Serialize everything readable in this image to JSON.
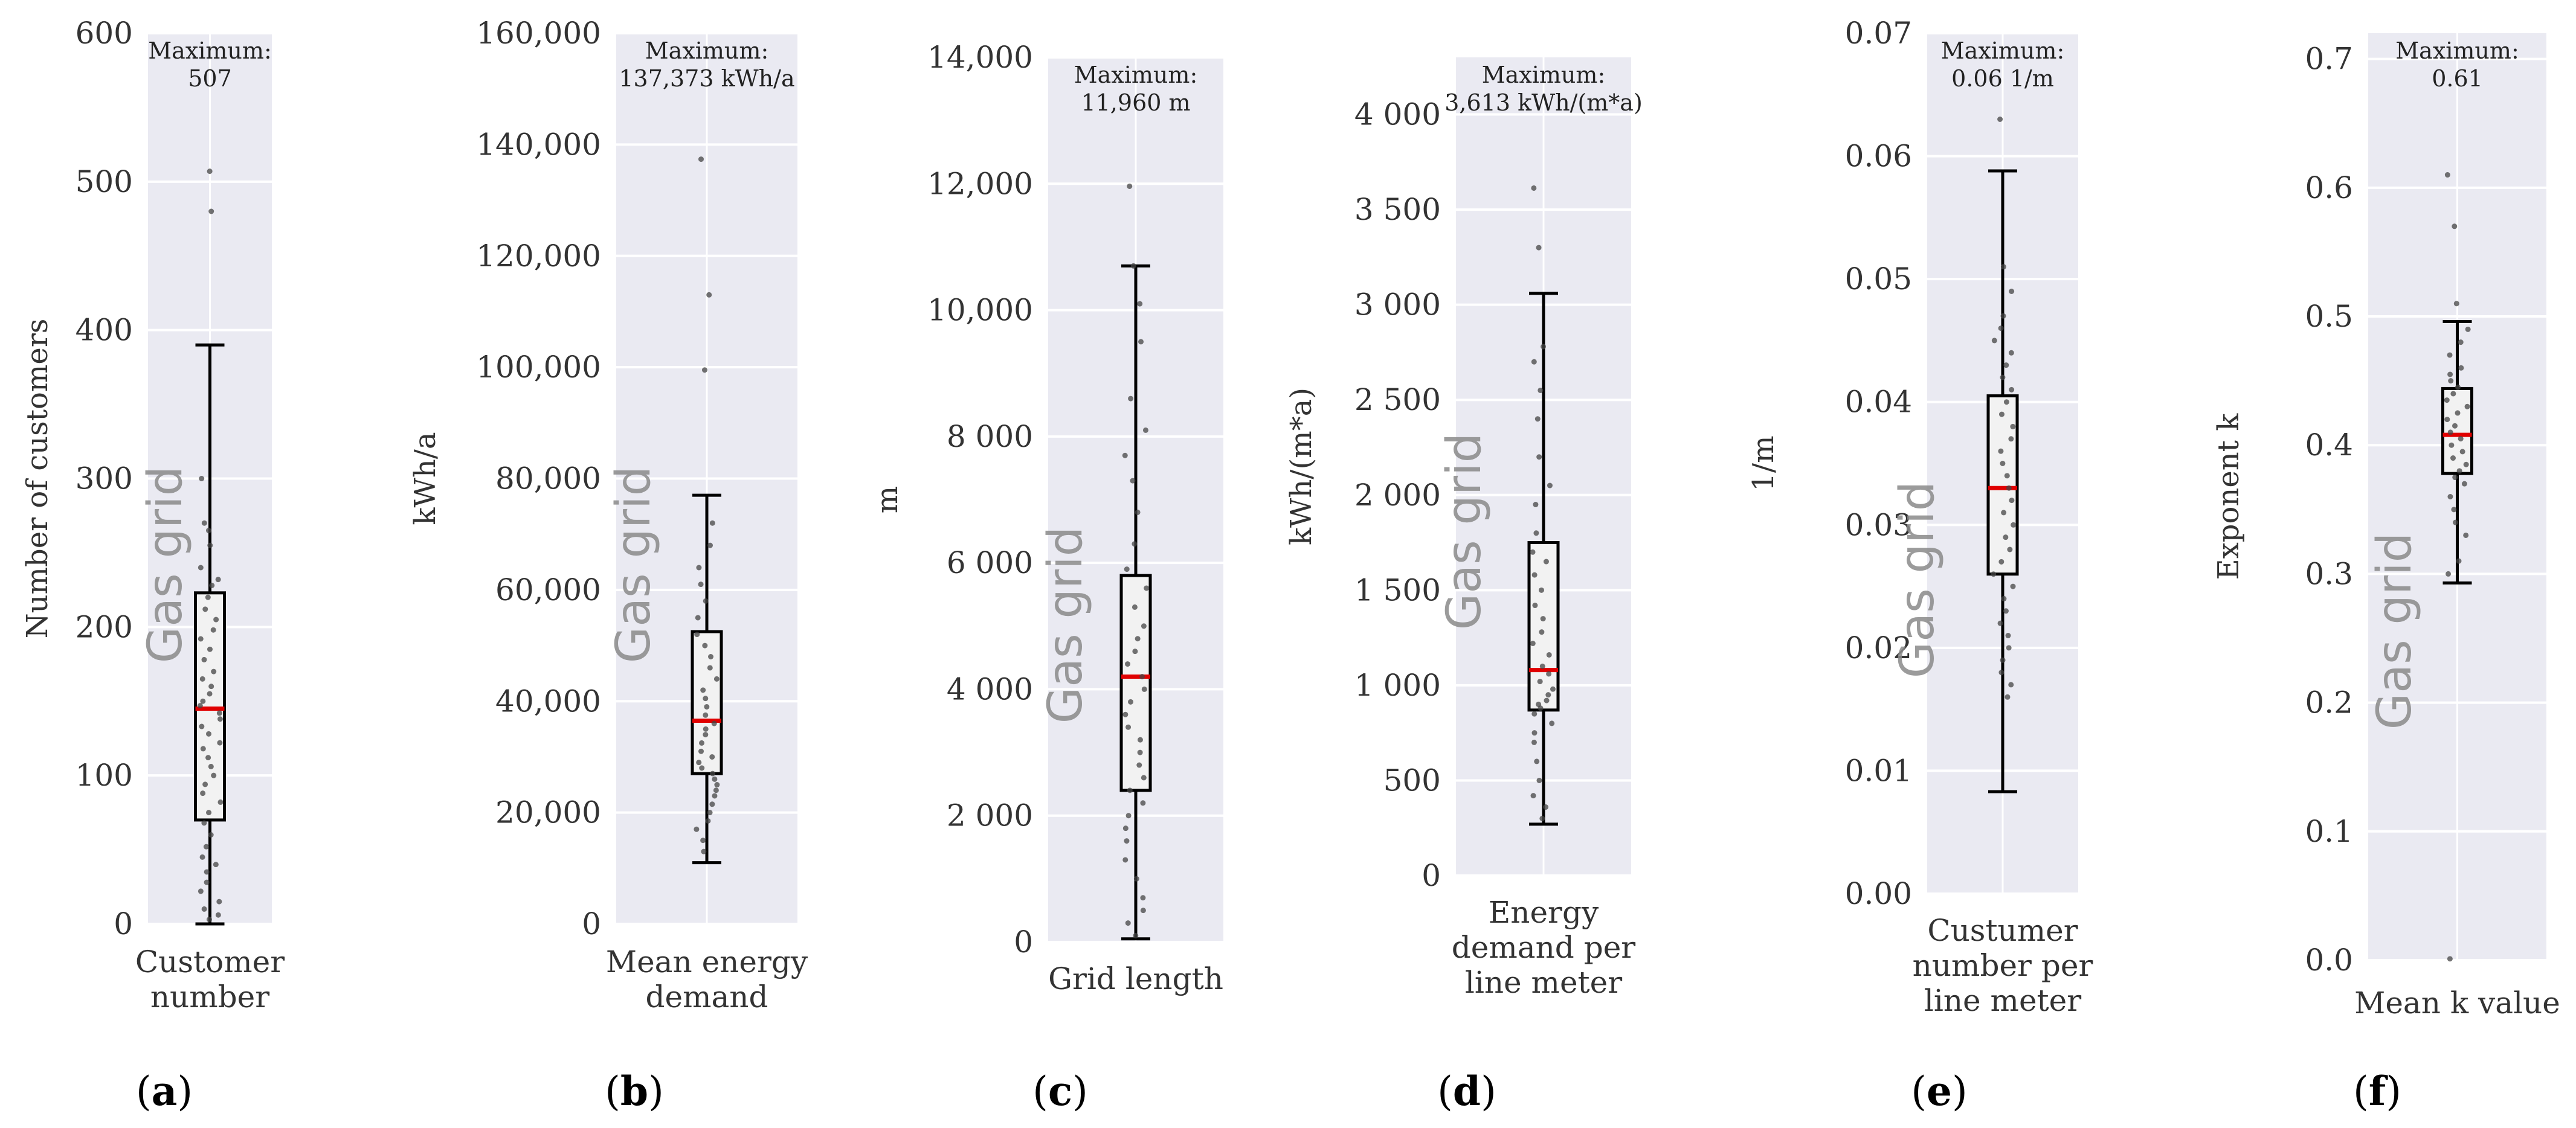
{
  "watermark": "Gas grid",
  "chart_data": [
    {
      "type": "box",
      "panel_label": "(a)",
      "panel_letter": "a",
      "category": [
        "Customer",
        "number"
      ],
      "ylabel": "Number of customers",
      "ylim": [
        0,
        600
      ],
      "ticks": [
        0,
        100,
        200,
        300,
        400,
        500,
        600
      ],
      "tick_labels": [
        "0",
        "100",
        "200",
        "300",
        "400",
        "500",
        "600"
      ],
      "max_label": [
        "Maximum:",
        "507"
      ],
      "whisker_low": 0,
      "q1": 70,
      "median": 145,
      "q3": 223,
      "whisker_high": 390,
      "points": [
        507,
        480,
        300,
        270,
        265,
        255,
        240,
        232,
        228,
        220,
        212,
        205,
        198,
        192,
        185,
        178,
        170,
        165,
        160,
        155,
        150,
        147,
        142,
        138,
        133,
        128,
        122,
        118,
        112,
        106,
        100,
        94,
        88,
        82,
        75,
        68,
        60,
        52,
        45,
        40,
        35,
        28,
        22,
        15,
        10,
        6,
        3
      ]
    },
    {
      "type": "box",
      "panel_label": "(b)",
      "panel_letter": "b",
      "category": [
        "Mean energy",
        "demand"
      ],
      "ylabel": "kWh/a",
      "ylim": [
        0,
        160000
      ],
      "ticks": [
        0,
        20000,
        40000,
        60000,
        80000,
        100000,
        120000,
        140000,
        160000
      ],
      "tick_labels": [
        "0",
        "20,000",
        "40,000",
        "60,000",
        "80,000",
        "100,000",
        "120,000",
        "140,000",
        "160,000"
      ],
      "max_label": [
        "Maximum:",
        "137,373 kWh/a"
      ],
      "whisker_low": 11000,
      "q1": 27000,
      "median": 36500,
      "q3": 52500,
      "whisker_high": 77000,
      "points": [
        137373,
        113000,
        99500,
        72000,
        68000,
        64000,
        61000,
        58000,
        55000,
        52000,
        50000,
        48000,
        46000,
        44000,
        42000,
        40500,
        39000,
        37500,
        36000,
        35000,
        34000,
        32500,
        31000,
        30000,
        29000,
        28000,
        27000,
        26000,
        25000,
        24000,
        23000,
        21500,
        20000,
        18500,
        17000,
        15000,
        13000
      ]
    },
    {
      "type": "box",
      "panel_label": "(c)",
      "panel_letter": "c",
      "category": [
        "Grid length"
      ],
      "ylabel": "m",
      "ylim": [
        0,
        14000
      ],
      "ticks": [
        0,
        2000,
        4000,
        6000,
        8000,
        10000,
        12000,
        14000
      ],
      "tick_labels": [
        "0",
        "2 000",
        "4 000",
        "6 000",
        "8 000",
        "10,000",
        "12,000",
        "14,000"
      ],
      "max_label": [
        "Maximum:",
        "11,960 m"
      ],
      "whisker_low": 50,
      "q1": 2400,
      "median": 4200,
      "q3": 5800,
      "whisker_high": 10700,
      "points": [
        11960,
        10700,
        10100,
        9500,
        8600,
        8100,
        7700,
        7300,
        6800,
        6300,
        5900,
        5600,
        5300,
        5000,
        4800,
        4600,
        4400,
        4200,
        4000,
        3800,
        3600,
        3400,
        3200,
        3000,
        2800,
        2600,
        2400,
        2200,
        2000,
        1800,
        1600,
        1300,
        1000,
        700,
        500,
        300,
        100
      ]
    },
    {
      "type": "box",
      "panel_label": "(d)",
      "panel_letter": "d",
      "category": [
        "Energy",
        "demand per",
        "line meter"
      ],
      "ylabel": "kWh/(m*a)",
      "ylim": [
        0,
        4300
      ],
      "ticks": [
        0,
        500,
        1000,
        1500,
        2000,
        2500,
        3000,
        3500,
        4000
      ],
      "tick_labels": [
        "0",
        "500",
        "1 000",
        "1 500",
        "2 000",
        "2 500",
        "3 000",
        "3 500",
        "4 000"
      ],
      "max_label": [
        "Maximum:",
        "3,613 kWh/(m*a)"
      ],
      "whisker_low": 270,
      "q1": 870,
      "median": 1080,
      "q3": 1750,
      "whisker_high": 3060,
      "points": [
        3613,
        3300,
        2780,
        2700,
        2550,
        2400,
        2200,
        2050,
        1950,
        1800,
        1700,
        1650,
        1580,
        1500,
        1420,
        1350,
        1280,
        1220,
        1160,
        1100,
        1060,
        1020,
        980,
        950,
        920,
        900,
        880,
        850,
        800,
        750,
        700,
        600,
        500,
        420,
        360,
        300
      ]
    },
    {
      "type": "box",
      "panel_label": "(e)",
      "panel_letter": "e",
      "category": [
        "Custumer",
        "number per",
        "line meter"
      ],
      "ylabel": "1/m",
      "ylim": [
        0,
        0.07
      ],
      "ticks": [
        0,
        0.01,
        0.02,
        0.03,
        0.04,
        0.05,
        0.06,
        0.07
      ],
      "tick_labels": [
        "0.00",
        "0.01",
        "0.02",
        "0.03",
        "0.04",
        "0.05",
        "0.06",
        "0.07"
      ],
      "max_label": [
        "Maximum:",
        "0.06 1/m"
      ],
      "whisker_low": 0.0083,
      "q1": 0.026,
      "median": 0.033,
      "q3": 0.0405,
      "whisker_high": 0.0588,
      "points": [
        0.063,
        0.051,
        0.049,
        0.047,
        0.046,
        0.045,
        0.044,
        0.043,
        0.042,
        0.041,
        0.04,
        0.039,
        0.038,
        0.037,
        0.036,
        0.035,
        0.034,
        0.033,
        0.032,
        0.031,
        0.03,
        0.029,
        0.028,
        0.027,
        0.026,
        0.025,
        0.024,
        0.023,
        0.022,
        0.021,
        0.02,
        0.019,
        0.018,
        0.017,
        0.016
      ]
    },
    {
      "type": "box",
      "panel_label": "(f)",
      "panel_letter": "f",
      "category": [
        "Mean k value"
      ],
      "ylabel": "Exponent k",
      "ylim": [
        0,
        0.72
      ],
      "ticks": [
        0,
        0.1,
        0.2,
        0.3,
        0.4,
        0.5,
        0.6,
        0.7
      ],
      "tick_labels": [
        "0.0",
        "0.1",
        "0.2",
        "0.3",
        "0.4",
        "0.5",
        "0.6",
        "0.7"
      ],
      "max_label": [
        "Maximum:",
        "0.61"
      ],
      "whisker_low": 0.293,
      "q1": 0.378,
      "median": 0.408,
      "q3": 0.444,
      "whisker_high": 0.496,
      "points": [
        0.61,
        0.57,
        0.51,
        0.49,
        0.48,
        0.47,
        0.46,
        0.455,
        0.45,
        0.445,
        0.44,
        0.435,
        0.43,
        0.425,
        0.42,
        0.415,
        0.41,
        0.405,
        0.4,
        0.395,
        0.39,
        0.385,
        0.38,
        0.375,
        0.37,
        0.36,
        0.35,
        0.34,
        0.33,
        0.31,
        0.3,
        0.001
      ]
    }
  ]
}
